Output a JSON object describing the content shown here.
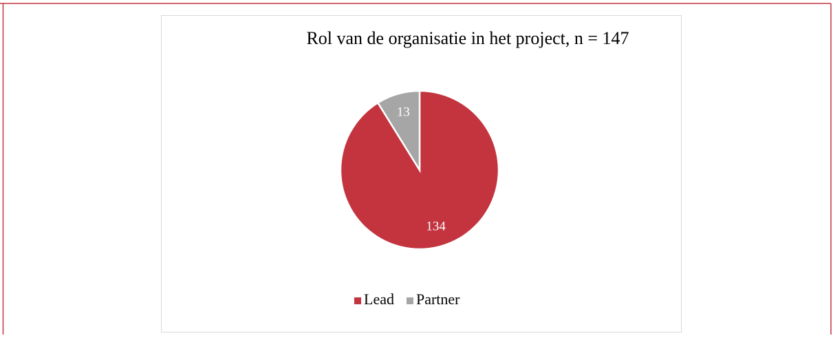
{
  "chart_data": {
    "type": "pie",
    "title": "Rol van  de organisatie in het project, n = 147",
    "categories": [
      "Lead",
      "Partner"
    ],
    "values": [
      134,
      13
    ],
    "colors": [
      "#c3343f",
      "#a6a6a6"
    ],
    "legend": "bottom"
  }
}
